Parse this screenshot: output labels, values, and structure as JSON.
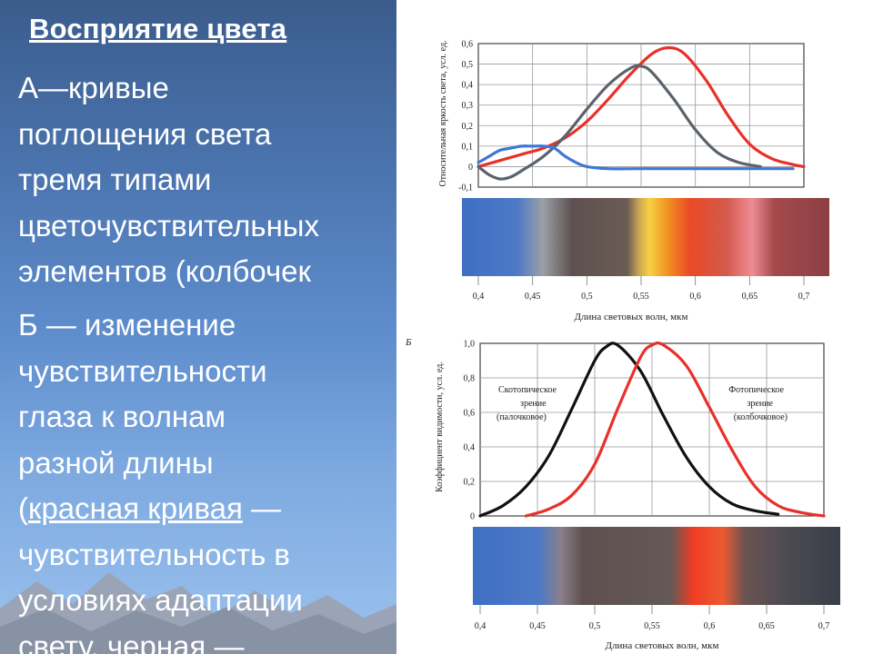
{
  "slide": {
    "title": "Восприятие цвета",
    "paragraph_a": {
      "label": "А",
      "lines": [
        "—кривые",
        "поглощения света",
        "тремя типами",
        "цветочувствительных",
        "элементов (колбочек"
      ]
    },
    "paragraph_b": {
      "label": "Б",
      "lines": [
        " — изменение",
        "чувствительности",
        "глаза к волнам",
        "разной длины"
      ],
      "line5_open": "(",
      "line5_link": "красная кривая",
      "line5_rest": " —",
      "lines_after": [
        "чувствительность в",
        "условиях адаптации",
        "свету, черная —"
      ]
    }
  },
  "chart_data": [
    {
      "panel_label": "",
      "type": "line",
      "ylabel": "Относительная яркость света, усл. ед.",
      "xlabel": "Длина световых волн, мкм",
      "xlim": [
        0.4,
        0.7
      ],
      "ylim": [
        -0.1,
        0.6
      ],
      "x_ticks": [
        "0,4",
        "0,45",
        "0,5",
        "0,55",
        "0,6",
        "0,65",
        "0,7"
      ],
      "y_ticks": [
        "0,6",
        "0,5",
        "0,4",
        "0,3",
        "0,2",
        "0,1",
        "0",
        "-0,1"
      ],
      "grid": true,
      "series": [
        {
          "color": "#e8312a",
          "x": [
            0.4,
            0.42,
            0.44,
            0.46,
            0.48,
            0.5,
            0.52,
            0.54,
            0.56,
            0.575,
            0.59,
            0.61,
            0.63,
            0.65,
            0.67,
            0.69,
            0.7
          ],
          "y": [
            0.0,
            0.03,
            0.06,
            0.09,
            0.14,
            0.22,
            0.33,
            0.45,
            0.55,
            0.58,
            0.55,
            0.42,
            0.25,
            0.11,
            0.04,
            0.01,
            0.0
          ]
        },
        {
          "color": "#5a636b",
          "x": [
            0.4,
            0.41,
            0.42,
            0.43,
            0.44,
            0.46,
            0.48,
            0.5,
            0.52,
            0.54,
            0.55,
            0.56,
            0.58,
            0.6,
            0.62,
            0.64,
            0.66
          ],
          "y": [
            0.0,
            -0.04,
            -0.06,
            -0.05,
            -0.02,
            0.05,
            0.15,
            0.28,
            0.4,
            0.48,
            0.49,
            0.46,
            0.33,
            0.18,
            0.07,
            0.02,
            0.0
          ]
        },
        {
          "color": "#3f78d4",
          "x": [
            0.4,
            0.41,
            0.42,
            0.43,
            0.44,
            0.45,
            0.46,
            0.47,
            0.48,
            0.49,
            0.5,
            0.52,
            0.55,
            0.6,
            0.65,
            0.69
          ],
          "y": [
            0.02,
            0.05,
            0.08,
            0.09,
            0.1,
            0.1,
            0.1,
            0.09,
            0.05,
            0.02,
            0.0,
            -0.01,
            -0.01,
            -0.01,
            -0.01,
            -0.01
          ]
        }
      ],
      "spectrum_stops": [
        [
          "0.00",
          "#3f6fc4"
        ],
        [
          "0.15",
          "#4d79c6"
        ],
        [
          "0.22",
          "#9aa0a6"
        ],
        [
          "0.30",
          "#5e5050"
        ],
        [
          "0.45",
          "#6a5c54"
        ],
        [
          "0.48",
          "#c7a256"
        ],
        [
          "0.51",
          "#f7d142"
        ],
        [
          "0.56",
          "#f29222"
        ],
        [
          "0.62",
          "#ea4a26"
        ],
        [
          "0.72",
          "#d45a4c"
        ],
        [
          "0.79",
          "#ee8c95"
        ],
        [
          "0.85",
          "#a44a4c"
        ],
        [
          "1.00",
          "#8b3f43"
        ]
      ]
    },
    {
      "panel_label": "Б",
      "type": "line",
      "ylabel": "Коэффициент видимости, усл. ед.",
      "xlabel": "Длина световых волн, мкм",
      "xlim": [
        0.4,
        0.7
      ],
      "ylim": [
        0,
        1.0
      ],
      "x_ticks": [
        "0,4",
        "0,45",
        "0,5",
        "0,55",
        "0,6",
        "0,65",
        "0,7"
      ],
      "y_ticks": [
        "1,0",
        "0,8",
        "0,6",
        "0,4",
        "0,2",
        "0"
      ],
      "grid": true,
      "annotations": [
        {
          "lines": [
            "Скотопическое",
            "зрение",
            "(палочковое)"
          ],
          "anchor": "left"
        },
        {
          "lines": [
            "Фотопическое",
            "зрение",
            "(колбочковое)"
          ],
          "anchor": "right"
        }
      ],
      "series": [
        {
          "name": "Скотопическое зрение (палочковое)",
          "color": "#111111",
          "x": [
            0.4,
            0.42,
            0.44,
            0.46,
            0.48,
            0.5,
            0.51,
            0.52,
            0.54,
            0.56,
            0.58,
            0.6,
            0.62,
            0.64,
            0.66
          ],
          "y": [
            0.0,
            0.06,
            0.17,
            0.35,
            0.62,
            0.9,
            0.98,
            0.99,
            0.84,
            0.58,
            0.34,
            0.17,
            0.07,
            0.03,
            0.01
          ]
        },
        {
          "name": "Фотопическое зрение (колбочковое)",
          "color": "#e8312a",
          "x": [
            0.44,
            0.46,
            0.48,
            0.5,
            0.52,
            0.54,
            0.55,
            0.56,
            0.58,
            0.6,
            0.62,
            0.64,
            0.66,
            0.68,
            0.7
          ],
          "y": [
            0.0,
            0.04,
            0.12,
            0.3,
            0.62,
            0.92,
            0.99,
            0.99,
            0.87,
            0.63,
            0.38,
            0.17,
            0.06,
            0.02,
            0.0
          ]
        }
      ],
      "spectrum_stops": [
        [
          "0.00",
          "#3f6fc4"
        ],
        [
          "0.18",
          "#4d79c6"
        ],
        [
          "0.24",
          "#8b7f8a"
        ],
        [
          "0.30",
          "#5e5050"
        ],
        [
          "0.54",
          "#645954"
        ],
        [
          "0.60",
          "#f03c24"
        ],
        [
          "0.68",
          "#ec5a30"
        ],
        [
          "0.74",
          "#6a5452"
        ],
        [
          "0.86",
          "#4b4a52"
        ],
        [
          "1.00",
          "#3a3e48"
        ]
      ]
    }
  ]
}
